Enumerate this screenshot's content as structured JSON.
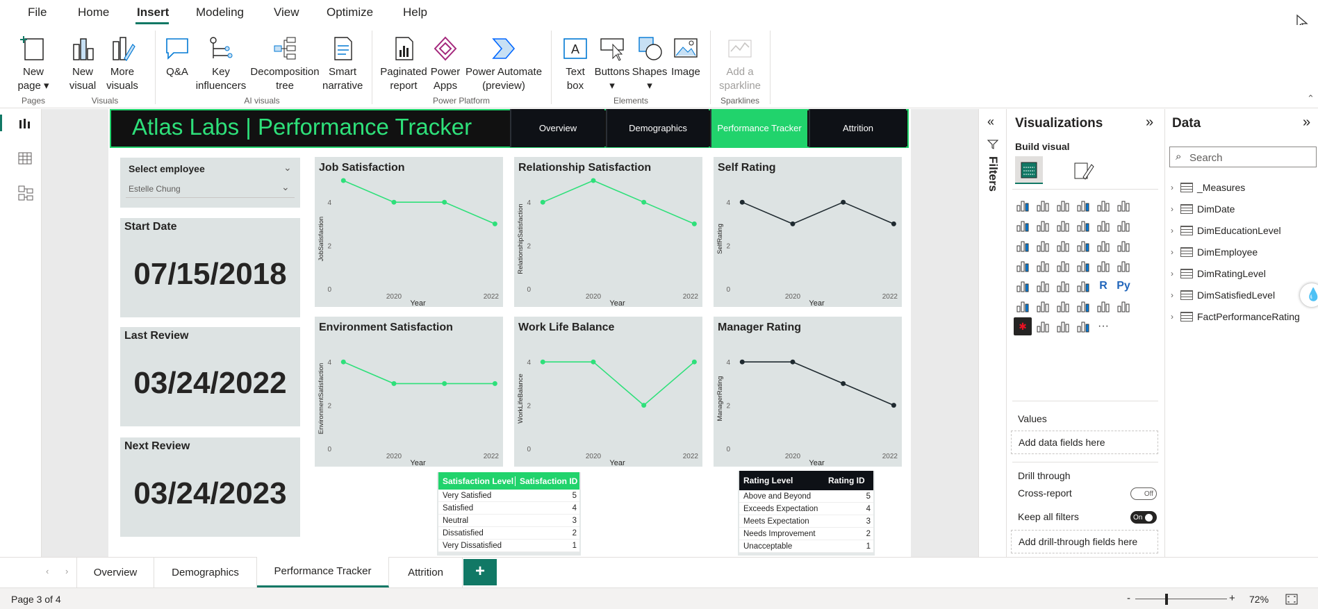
{
  "menu": {
    "items": [
      "File",
      "Home",
      "Insert",
      "Modeling",
      "View",
      "Optimize",
      "Help"
    ],
    "active": "Insert"
  },
  "ribbon": {
    "new_page": "New page",
    "new_visual": "New visual",
    "more_visuals": "More visuals",
    "qa": "Q&A",
    "key_influencers": "Key influencers",
    "decomposition_tree": "Decomposition tree",
    "smart_narrative": "Smart narrative",
    "paginated_report": "Paginated report",
    "power_apps": "Power Apps",
    "power_automate": "Power Automate (preview)",
    "text_box": "Text box",
    "buttons": "Buttons",
    "shapes": "Shapes",
    "image": "Image",
    "add_sparkline": "Add a sparkline",
    "groups": {
      "pages": "Pages",
      "visuals": "Visuals",
      "ai_visuals": "AI visuals",
      "power_platform": "Power Platform",
      "elements": "Elements",
      "sparklines": "Sparklines"
    }
  },
  "report": {
    "title": "Atlas Labs | Performance Tracker",
    "nav": [
      "Overview",
      "Demographics",
      "Performance Tracker",
      "Attrition"
    ],
    "nav_active": "Performance Tracker",
    "slicer_label": "Select employee",
    "slicer_value": "Estelle Chung",
    "start_date_label": "Start Date",
    "start_date": "07/15/2018",
    "last_review_label": "Last Review",
    "last_review": "03/24/2022",
    "next_review_label": "Next Review",
    "next_review": "03/24/2023"
  },
  "chart_data": [
    {
      "type": "line",
      "title": "Job Satisfaction",
      "ylabel": "JobSatisfaction",
      "xlabel": "Year",
      "x": [
        2019,
        2020,
        2021,
        2022
      ],
      "values": [
        5,
        4,
        4,
        3
      ],
      "ylim": [
        0,
        5
      ],
      "yticks": [
        0,
        2,
        4
      ],
      "xticks": [
        2020,
        2022
      ],
      "color": "#2ee07a"
    },
    {
      "type": "line",
      "title": "Relationship Satisfaction",
      "ylabel": "RelationshipSatisfaction",
      "xlabel": "Year",
      "x": [
        2019,
        2020,
        2021,
        2022
      ],
      "values": [
        4,
        5,
        4,
        3
      ],
      "ylim": [
        0,
        5
      ],
      "yticks": [
        0,
        2,
        4
      ],
      "xticks": [
        2020,
        2022
      ],
      "color": "#2ee07a"
    },
    {
      "type": "line",
      "title": "Self Rating",
      "ylabel": "SelfRating",
      "xlabel": "Year",
      "x": [
        2019,
        2020,
        2021,
        2022
      ],
      "values": [
        4,
        3,
        4,
        3
      ],
      "ylim": [
        0,
        5
      ],
      "yticks": [
        0,
        2,
        4
      ],
      "xticks": [
        2020,
        2022
      ],
      "color": "#1f2a30"
    },
    {
      "type": "line",
      "title": "Environment Satisfaction",
      "ylabel": "EnvironmentSatisfaction",
      "xlabel": "Year",
      "x": [
        2019,
        2020,
        2021,
        2022
      ],
      "values": [
        4,
        3,
        3,
        3
      ],
      "ylim": [
        0,
        5
      ],
      "yticks": [
        0,
        2,
        4
      ],
      "xticks": [
        2020,
        2022
      ],
      "color": "#2ee07a"
    },
    {
      "type": "line",
      "title": "Work Life Balance",
      "ylabel": "WorkLifeBalance",
      "xlabel": "Year",
      "x": [
        2019,
        2020,
        2021,
        2022
      ],
      "values": [
        4,
        4,
        2,
        4
      ],
      "ylim": [
        0,
        5
      ],
      "yticks": [
        0,
        2,
        4
      ],
      "xticks": [
        2020,
        2022
      ],
      "color": "#2ee07a"
    },
    {
      "type": "line",
      "title": "Manager Rating",
      "ylabel": "ManagerRating",
      "xlabel": "Year",
      "x": [
        2019,
        2020,
        2021,
        2022
      ],
      "values": [
        4,
        4,
        3,
        2
      ],
      "ylim": [
        0,
        5
      ],
      "yticks": [
        0,
        2,
        4
      ],
      "xticks": [
        2020,
        2022
      ],
      "color": "#1f2a30"
    }
  ],
  "satisfaction_table": {
    "headers": [
      "Satisfaction Level",
      "Satisfaction ID"
    ],
    "rows": [
      [
        "Very Satisfied",
        "5"
      ],
      [
        "Satisfied",
        "4"
      ],
      [
        "Neutral",
        "3"
      ],
      [
        "Dissatisfied",
        "2"
      ],
      [
        "Very Dissatisfied",
        "1"
      ]
    ],
    "header_color": "#21d36c"
  },
  "rating_table": {
    "headers": [
      "Rating Level",
      "Rating ID"
    ],
    "rows": [
      [
        "Above and Beyond",
        "5"
      ],
      [
        "Exceeds Expectation",
        "4"
      ],
      [
        "Meets Expectation",
        "3"
      ],
      [
        "Needs Improvement",
        "2"
      ],
      [
        "Unacceptable",
        "1"
      ]
    ],
    "header_color": "#0e1116"
  },
  "filters_label": "Filters",
  "visualizations": {
    "title": "Visualizations",
    "build_visual": "Build visual",
    "values_label": "Values",
    "values_placeholder": "Add data fields here",
    "drill_through": "Drill through",
    "cross_report": "Cross-report",
    "cross_report_state": "Off",
    "keep_all_filters": "Keep all filters",
    "keep_all_filters_state": "On",
    "drill_placeholder": "Add drill-through fields here",
    "r_icon": "R",
    "py_icon": "Py",
    "more_icon": "···"
  },
  "data": {
    "title": "Data",
    "search_placeholder": "Search",
    "fields": [
      "_Measures",
      "DimDate",
      "DimEducationLevel",
      "DimEmployee",
      "DimRatingLevel",
      "DimSatisfiedLevel",
      "FactPerformanceRating"
    ]
  },
  "pages": {
    "tabs": [
      "Overview",
      "Demographics",
      "Performance Tracker",
      "Attrition"
    ],
    "active": "Performance Tracker",
    "add": "+"
  },
  "status": {
    "page": "Page 3 of 4",
    "zoom": "72%",
    "zoom_minus": "-",
    "zoom_plus": "+"
  }
}
